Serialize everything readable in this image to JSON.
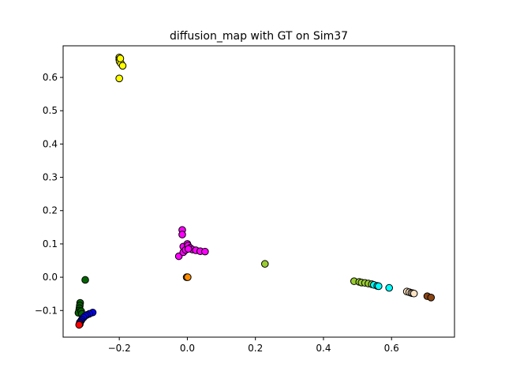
{
  "chart_data": {
    "type": "scatter",
    "title": "diffusion_map with GT on Sim37",
    "xlabel": "",
    "ylabel": "",
    "xlim": [
      -0.365,
      0.785
    ],
    "ylim": [
      -0.18,
      0.695
    ],
    "xticks": [
      -0.2,
      0.0,
      0.2,
      0.4,
      0.6
    ],
    "xtick_labels": [
      "−0.2",
      "0.0",
      "0.2",
      "0.4",
      "0.6"
    ],
    "yticks": [
      -0.1,
      0.0,
      0.1,
      0.2,
      0.3,
      0.4,
      0.5,
      0.6
    ],
    "ytick_labels": [
      "−0.1",
      "0.0",
      "0.1",
      "0.2",
      "0.3",
      "0.4",
      "0.5",
      "0.6"
    ],
    "grid": false,
    "marker_edge_color": "#000000",
    "series": [
      {
        "color": "#ffff00",
        "points": [
          [
            -0.2,
            0.597
          ],
          [
            -0.2,
            0.66
          ],
          [
            -0.2,
            0.654
          ],
          [
            -0.199,
            0.648
          ],
          [
            -0.195,
            0.642
          ],
          [
            -0.19,
            0.635
          ],
          [
            -0.197,
            0.657
          ]
        ]
      },
      {
        "color": "#ff00ff",
        "points": [
          [
            -0.015,
            0.142
          ],
          [
            -0.015,
            0.128
          ],
          [
            -0.025,
            0.063
          ],
          [
            -0.012,
            0.092
          ],
          [
            -0.012,
            0.075
          ],
          [
            -0.005,
            0.082
          ],
          [
            0.0,
            0.1
          ],
          [
            0.002,
            0.095
          ],
          [
            0.008,
            0.088
          ],
          [
            0.015,
            0.083
          ],
          [
            0.025,
            0.081
          ],
          [
            0.038,
            0.078
          ],
          [
            0.052,
            0.077
          ],
          [
            0.003,
            0.085
          ]
        ]
      },
      {
        "color": "#ff8c00",
        "points": [
          [
            -0.002,
            0.0
          ],
          [
            0.001,
            0.0
          ]
        ]
      },
      {
        "color": "#9acd32",
        "points": [
          [
            0.228,
            0.04
          ],
          [
            0.49,
            -0.012
          ],
          [
            0.505,
            -0.014
          ],
          [
            0.512,
            -0.016
          ],
          [
            0.522,
            -0.017
          ],
          [
            0.532,
            -0.019
          ],
          [
            0.542,
            -0.021
          ]
        ]
      },
      {
        "color": "#00ffff",
        "points": [
          [
            0.548,
            -0.023
          ],
          [
            0.558,
            -0.026
          ],
          [
            0.562,
            -0.027
          ],
          [
            0.593,
            -0.032
          ]
        ]
      },
      {
        "color": "#ffe4c4",
        "points": [
          [
            0.645,
            -0.043
          ],
          [
            0.652,
            -0.045
          ],
          [
            0.658,
            -0.047
          ],
          [
            0.662,
            -0.048
          ],
          [
            0.666,
            -0.049
          ]
        ]
      },
      {
        "color": "#8b4513",
        "points": [
          [
            0.705,
            -0.057
          ],
          [
            0.716,
            -0.061
          ]
        ]
      },
      {
        "color": "#006400",
        "points": [
          [
            -0.3,
            -0.008
          ],
          [
            -0.315,
            -0.077
          ],
          [
            -0.316,
            -0.085
          ],
          [
            -0.317,
            -0.093
          ],
          [
            -0.318,
            -0.1
          ],
          [
            -0.32,
            -0.107
          ],
          [
            -0.312,
            -0.102
          ],
          [
            -0.31,
            -0.11
          ]
        ]
      },
      {
        "color": "#0000ff",
        "points": [
          [
            -0.278,
            -0.106
          ],
          [
            -0.288,
            -0.11
          ],
          [
            -0.295,
            -0.113
          ],
          [
            -0.3,
            -0.116
          ],
          [
            -0.305,
            -0.121
          ],
          [
            -0.31,
            -0.127
          ],
          [
            -0.313,
            -0.132
          ],
          [
            -0.316,
            -0.136
          ]
        ]
      },
      {
        "color": "#ff0000",
        "points": [
          [
            -0.316,
            -0.141
          ],
          [
            -0.318,
            -0.143
          ]
        ]
      }
    ]
  }
}
